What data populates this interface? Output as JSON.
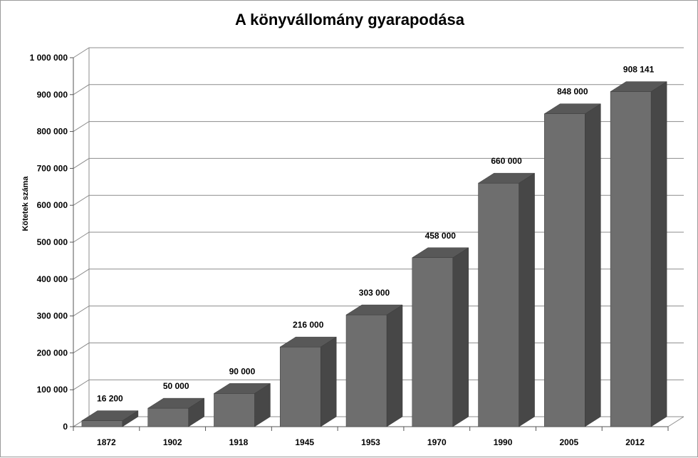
{
  "chart_data": {
    "type": "bar",
    "title": "A könyvállomány gyarapodása",
    "ylabel": "Kötetek száma",
    "xlabel": "",
    "categories": [
      "1872",
      "1902",
      "1918",
      "1945",
      "1953",
      "1970",
      "1990",
      "2005",
      "2012"
    ],
    "values": [
      16200,
      50000,
      90000,
      216000,
      303000,
      458000,
      660000,
      848000,
      908141
    ],
    "data_labels": [
      "16 200",
      "50 000",
      "90 000",
      "216 000",
      "303 000",
      "458 000",
      "660 000",
      "848 000",
      "908 141"
    ],
    "ylim": [
      0,
      1000000
    ],
    "yticks": [
      0,
      100000,
      200000,
      300000,
      400000,
      500000,
      600000,
      700000,
      800000,
      900000,
      1000000
    ],
    "ytick_labels": [
      "0",
      "100 000",
      "200 000",
      "300 000",
      "400 000",
      "500 000",
      "600 000",
      "700 000",
      "800 000",
      "900 000",
      "1 000 000"
    ],
    "grid": true,
    "legend": "none",
    "style": "3d-column",
    "colors": {
      "bar_front": "#6e6e6e",
      "bar_top": "#585858",
      "bar_side": "#474747",
      "grid": "#8c8c8c"
    }
  }
}
